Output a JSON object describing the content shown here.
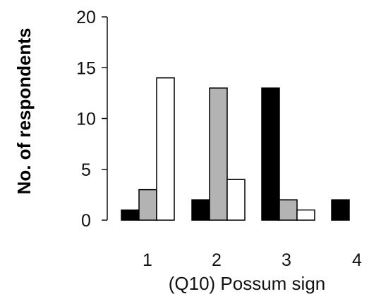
{
  "chart_data": {
    "type": "bar",
    "categories": [
      "1",
      "2",
      "3",
      "4"
    ],
    "series": [
      {
        "values": [
          1,
          2,
          13,
          2
        ],
        "color": "#000000"
      },
      {
        "values": [
          3,
          13,
          2,
          0
        ],
        "color": "#b3b3b3"
      },
      {
        "values": [
          14,
          4,
          1,
          0
        ],
        "color": "#ffffff"
      }
    ],
    "ylabel": "No. of respondents",
    "xlabel": "(Q10) Possum sign",
    "ylim": [
      0,
      20
    ],
    "yticks": [
      "0",
      "5",
      "10",
      "15",
      "20"
    ],
    "grid": false,
    "legend": "none"
  }
}
